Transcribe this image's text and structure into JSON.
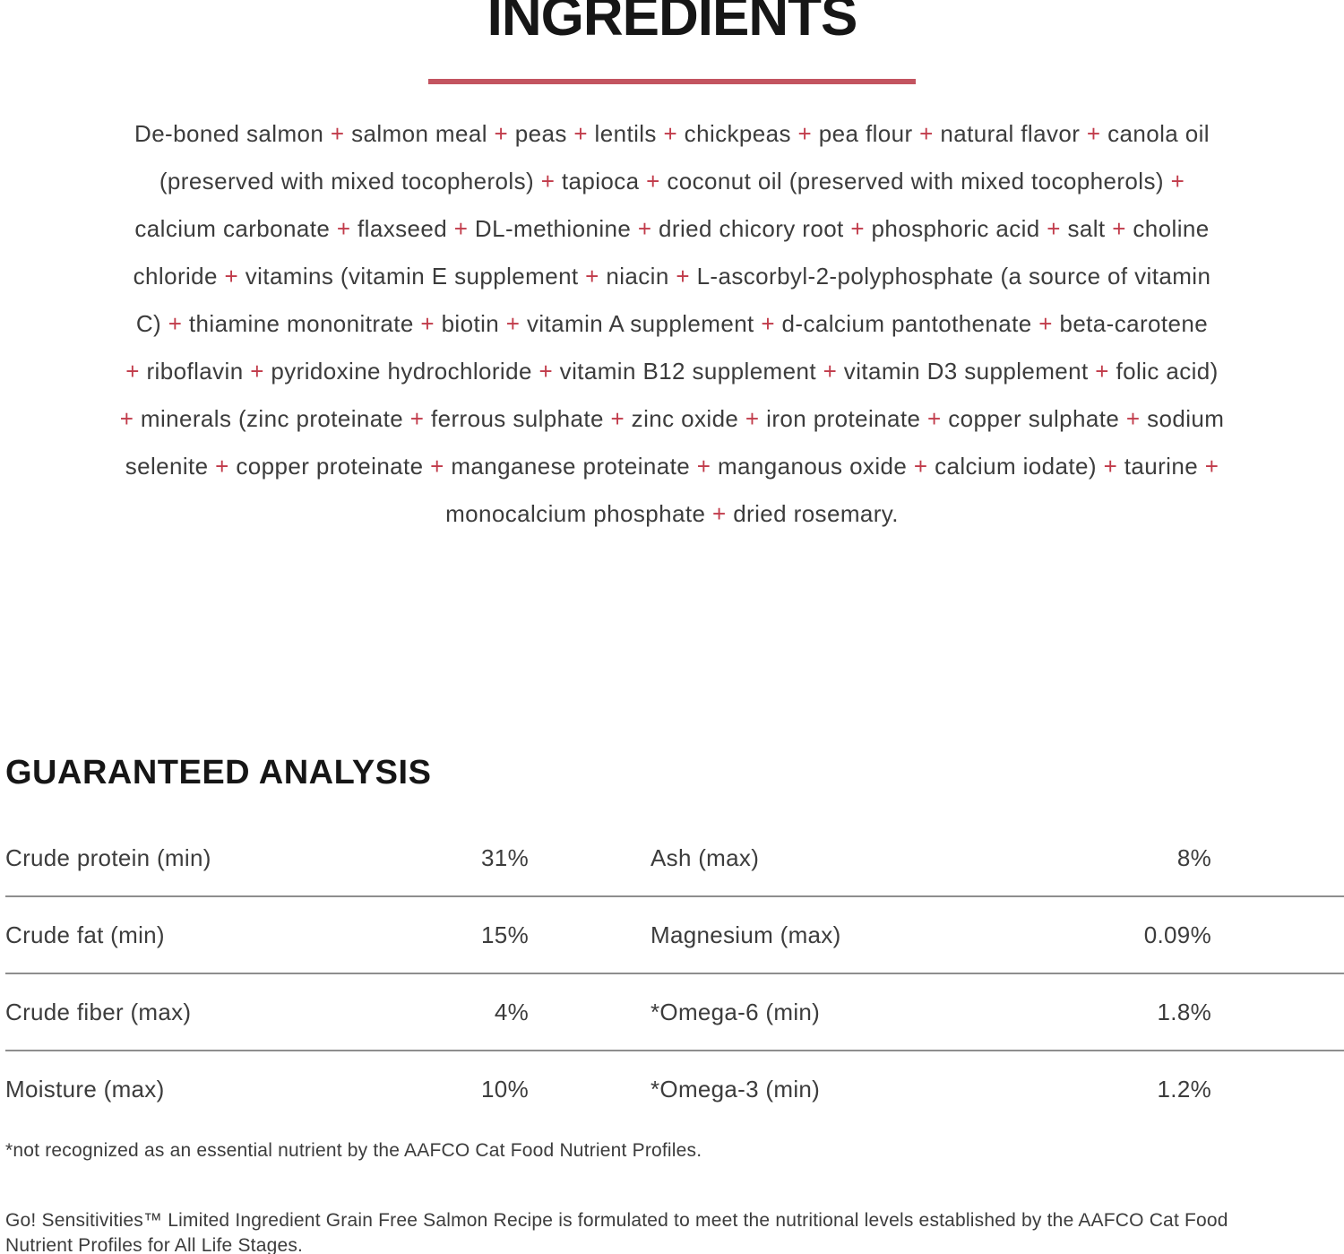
{
  "colors": {
    "accent_red": "#c13b4a",
    "underline_red": "#c35460",
    "text_dark": "#3c3c3c",
    "heading_black": "#161616",
    "divider_gray": "#8e8e8e"
  },
  "ingredients": {
    "title": "INGREDIENTS",
    "separator": "+",
    "lines": [
      "De-boned salmon + salmon meal + peas + lentils + chickpeas + pea flour + natural flavor + canola oil",
      "(preserved with mixed tocopherols) + tapioca + coconut oil (preserved with mixed tocopherols) +",
      "calcium carbonate + flaxseed + DL-methionine + dried chicory root + phosphoric acid + salt + choline",
      "chloride + vitamins (vitamin E supplement + niacin + L-ascorbyl-2-polyphosphate (a source of vitamin",
      "C) + thiamine mononitrate + biotin + vitamin A supplement + d-calcium pantothenate + beta-carotene",
      "+ riboflavin + pyridoxine hydrochloride + vitamin B12 supplement + vitamin D3 supplement + folic acid)",
      "+ minerals (zinc proteinate + ferrous sulphate + zinc oxide + iron proteinate + copper sulphate + sodium",
      "selenite + copper proteinate + manganese proteinate + manganous oxide + calcium iodate) + taurine +",
      "monocalcium phosphate + dried rosemary."
    ]
  },
  "guaranteed_analysis": {
    "title": "GUARANTEED ANALYSIS",
    "rows": [
      {
        "left_label": "Crude protein (min)",
        "left_value": "31%",
        "right_label": "Ash (max)",
        "right_value": "8%"
      },
      {
        "left_label": "Crude fat (min)",
        "left_value": "15%",
        "right_label": "Magnesium (max)",
        "right_value": "0.09%"
      },
      {
        "left_label": "Crude fiber (max)",
        "left_value": "4%",
        "right_label": "*Omega-6 (min)",
        "right_value": "1.8%"
      },
      {
        "left_label": "Moisture (max)",
        "left_value": "10%",
        "right_label": "*Omega-3 (min)",
        "right_value": "1.2%"
      }
    ]
  },
  "footnotes": {
    "aafco_note": "*not recognized as an essential nutrient by the AAFCO Cat Food Nutrient Profiles.",
    "formulation_statement": "Go! Sensitivities™ Limited Ingredient Grain Free Salmon Recipe is formulated to meet the nutritional levels established by the AAFCO Cat Food Nutrient Profiles for All Life Stages."
  }
}
